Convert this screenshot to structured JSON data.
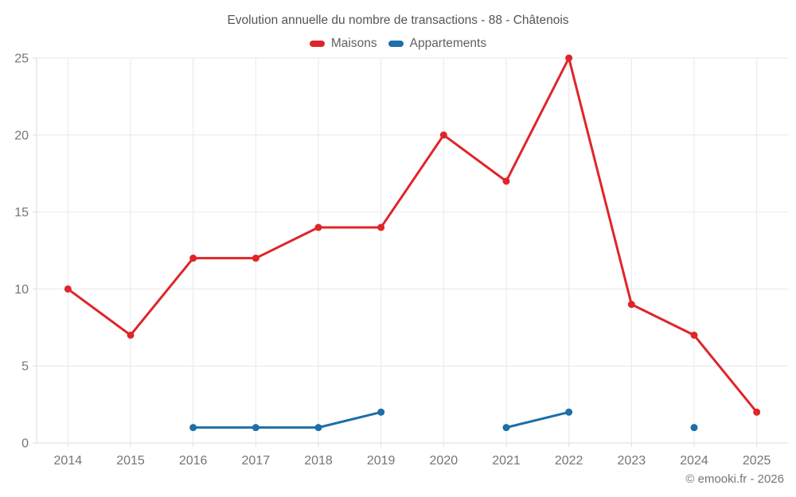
{
  "header": {
    "title": "Evolution annuelle du nombre de transactions - 88 - Châtenois"
  },
  "footer": {
    "copyright": "© emooki.fr - 2026"
  },
  "chart_data": {
    "type": "line",
    "title": "Evolution annuelle du nombre de transactions - 88 - Châtenois",
    "categories": [
      "2014",
      "2015",
      "2016",
      "2017",
      "2018",
      "2019",
      "2020",
      "2021",
      "2022",
      "2023",
      "2024",
      "2025"
    ],
    "series": [
      {
        "name": "Maisons",
        "color": "#df252a",
        "values": [
          10,
          7,
          12,
          12,
          14,
          14,
          20,
          17,
          25,
          9,
          7,
          2
        ]
      },
      {
        "name": "Appartements",
        "color": "#1c6fa8",
        "values": [
          null,
          null,
          1,
          1,
          1,
          2,
          null,
          1,
          2,
          null,
          1,
          null
        ]
      }
    ],
    "xlabel": "",
    "ylabel": "",
    "ylim": [
      0,
      25
    ],
    "yticks": [
      0,
      5,
      10,
      15,
      20,
      25
    ],
    "grid": true,
    "legend_position": "top",
    "colors": {
      "grid_line": "#e8e8e8",
      "axis_line": "#dddddd",
      "tick_label": "#757575"
    }
  }
}
